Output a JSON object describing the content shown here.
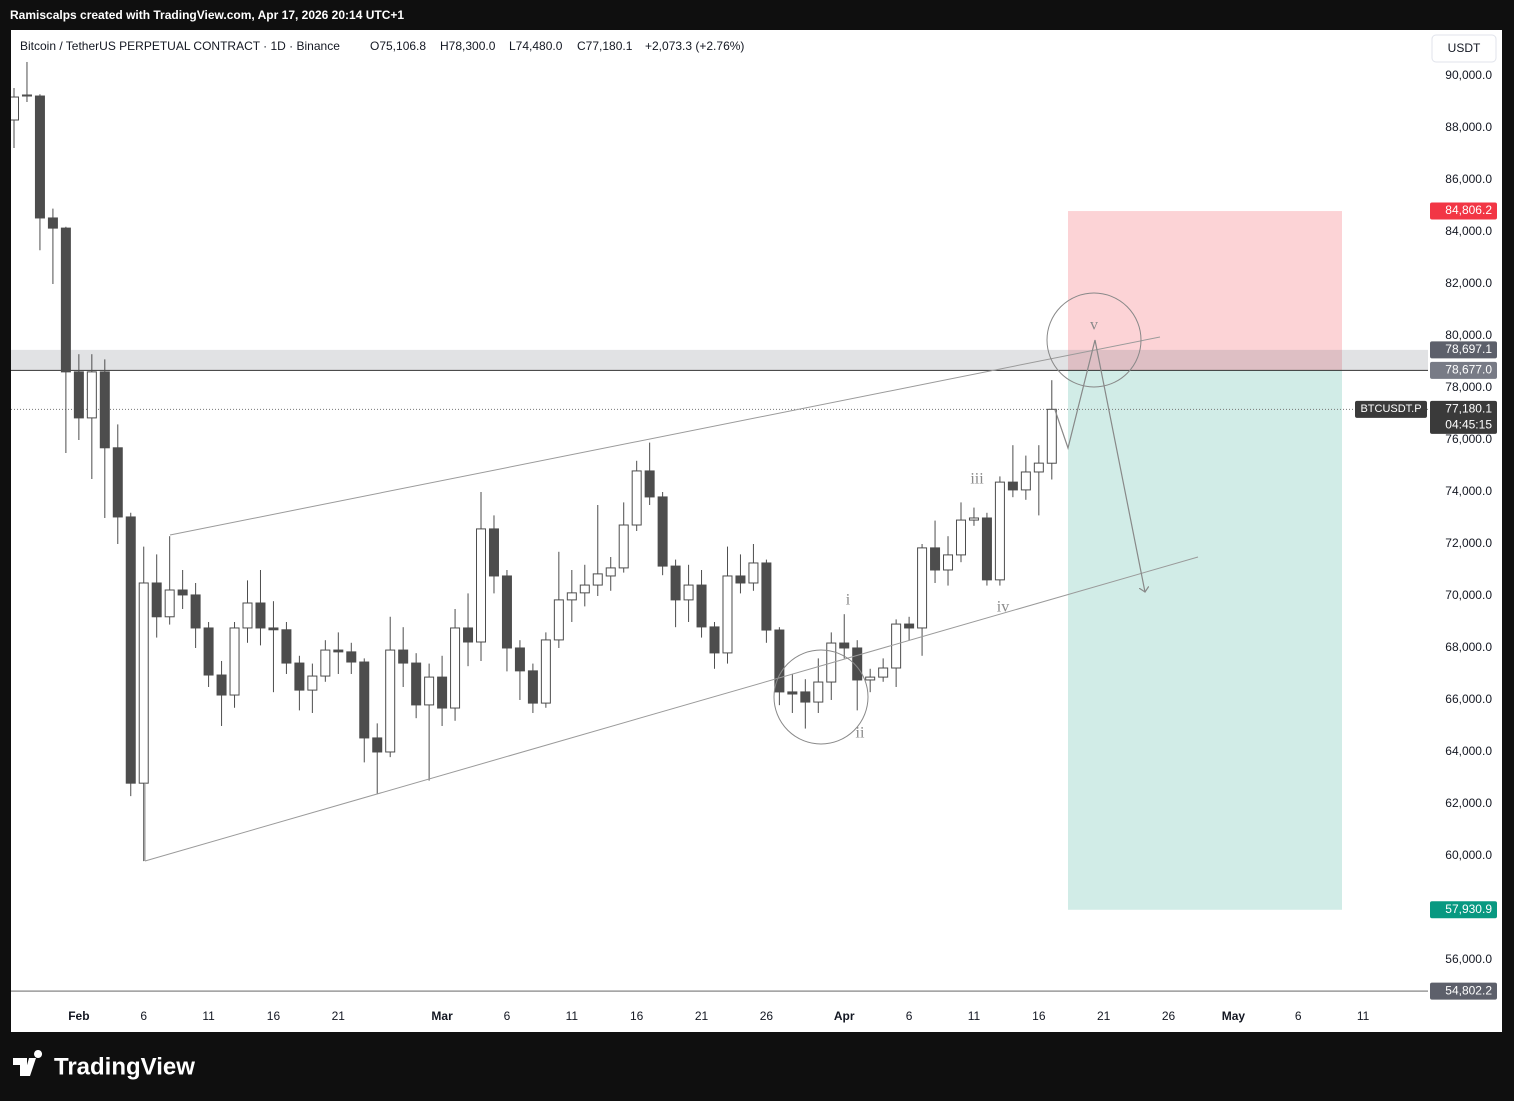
{
  "attribution": "Ramiscalps created with TradingView.com, Apr 17, 2026 20:14 UTC+1",
  "brand": "TradingView",
  "chart_data": {
    "type": "candlestick",
    "title": "Bitcoin / TetherUS PERPETUAL CONTRACT · 1D · Binance",
    "ohlc_labels": [
      "O75,106.8",
      "H78,300.0",
      "L74,480.0",
      "C77,180.1",
      "+2,073.3 (+2.76%)"
    ],
    "currency": "USDT",
    "x": [
      "2026-01-27",
      "2026-01-28",
      "2026-01-29",
      "2026-01-30",
      "2026-01-31",
      "2026-02-01",
      "2026-02-02",
      "2026-02-03",
      "2026-02-04",
      "2026-02-05",
      "2026-02-06",
      "2026-02-07",
      "2026-02-08",
      "2026-02-09",
      "2026-02-10",
      "2026-02-11",
      "2026-02-12",
      "2026-02-13",
      "2026-02-14",
      "2026-02-15",
      "2026-02-16",
      "2026-02-17",
      "2026-02-18",
      "2026-02-19",
      "2026-02-20",
      "2026-02-21",
      "2026-02-22",
      "2026-02-23",
      "2026-02-24",
      "2026-02-25",
      "2026-02-26",
      "2026-02-27",
      "2026-02-28",
      "2026-03-01",
      "2026-03-02",
      "2026-03-03",
      "2026-03-04",
      "2026-03-05",
      "2026-03-06",
      "2026-03-07",
      "2026-03-08",
      "2026-03-09",
      "2026-03-10",
      "2026-03-11",
      "2026-03-12",
      "2026-03-13",
      "2026-03-14",
      "2026-03-15",
      "2026-03-16",
      "2026-03-17",
      "2026-03-18",
      "2026-03-19",
      "2026-03-20",
      "2026-03-21",
      "2026-03-22",
      "2026-03-23",
      "2026-03-24",
      "2026-03-25",
      "2026-03-26",
      "2026-03-27",
      "2026-03-28",
      "2026-03-29",
      "2026-03-30",
      "2026-03-31",
      "2026-04-01",
      "2026-04-02",
      "2026-04-03",
      "2026-04-04",
      "2026-04-05",
      "2026-04-06",
      "2026-04-07",
      "2026-04-08",
      "2026-04-09",
      "2026-04-10",
      "2026-04-11",
      "2026-04-12",
      "2026-04-13",
      "2026-04-14",
      "2026-04-15",
      "2026-04-16",
      "2026-04-17"
    ],
    "open": [
      88308,
      89231,
      89230,
      84540,
      84150,
      78620,
      76850,
      78620,
      75700,
      73040,
      62800,
      70500,
      69200,
      70230,
      70040,
      68770,
      66960,
      66190,
      68770,
      69730,
      68770,
      68700,
      67420,
      66380,
      66920,
      67920,
      67850,
      67460,
      64540,
      64000,
      67920,
      67420,
      65810,
      66880,
      65690,
      68770,
      68230,
      72580,
      70770,
      68000,
      67120,
      65880,
      68310,
      69850,
      70120,
      70420,
      70770,
      71080,
      72730,
      74810,
      73810,
      71150,
      69850,
      70420,
      68810,
      67810,
      70770,
      70500,
      71270,
      68690,
      66310,
      66310,
      65920,
      66690,
      68190,
      68000,
      66770,
      66880,
      67230,
      68920,
      68770,
      71850,
      71000,
      71580,
      72920,
      73000,
      70620,
      74380,
      74080,
      74770,
      75106.8
    ],
    "high": [
      89538,
      90540,
      89300,
      84900,
      84200,
      79300,
      79300,
      79100,
      76600,
      73200,
      71900,
      71600,
      72300,
      71000,
      70500,
      69000,
      67500,
      69000,
      70600,
      71000,
      69800,
      69000,
      67700,
      67400,
      68300,
      68600,
      68200,
      67600,
      65100,
      69200,
      68800,
      67800,
      67400,
      67700,
      69500,
      70100,
      74000,
      73100,
      71000,
      68300,
      67400,
      68600,
      71700,
      71000,
      71200,
      73500,
      71500,
      73600,
      75200,
      75900,
      74000,
      71400,
      71200,
      71000,
      69000,
      71900,
      71600,
      72000,
      71400,
      68800,
      67000,
      66800,
      67600,
      68600,
      69300,
      68300,
      67200,
      67600,
      69100,
      69200,
      72000,
      72900,
      72300,
      73600,
      73400,
      73200,
      74600,
      75800,
      75400,
      75800,
      78300
    ],
    "low": [
      87231,
      89000,
      83300,
      82000,
      75500,
      76000,
      74500,
      73000,
      72000,
      62300,
      59800,
      68400,
      68900,
      69500,
      68000,
      66500,
      65000,
      65700,
      68200,
      68100,
      66300,
      67000,
      65600,
      65500,
      66700,
      67000,
      67000,
      63600,
      62400,
      63800,
      66500,
      65300,
      62900,
      65000,
      65200,
      67300,
      67500,
      70100,
      67100,
      66000,
      65500,
      65700,
      68000,
      69000,
      69600,
      70000,
      70200,
      70900,
      72500,
      73500,
      70800,
      68800,
      69000,
      68400,
      67200,
      67400,
      70100,
      70200,
      68200,
      65800,
      65500,
      64900,
      65500,
      66000,
      67600,
      65600,
      66300,
      66700,
      66500,
      68300,
      67700,
      70500,
      70400,
      71300,
      72700,
      70400,
      70400,
      73800,
      73700,
      73100,
      74480
    ],
    "close": [
      89192,
      89270,
      84540,
      84150,
      78620,
      76850,
      78620,
      75700,
      73040,
      62800,
      70500,
      69200,
      70230,
      70040,
      68770,
      66960,
      66190,
      68770,
      69730,
      68770,
      68700,
      67420,
      66380,
      66920,
      67920,
      67850,
      67460,
      64540,
      64000,
      67920,
      67420,
      65810,
      66880,
      65690,
      68770,
      68230,
      72580,
      70770,
      68000,
      67120,
      65880,
      68310,
      69850,
      70120,
      70420,
      70850,
      71080,
      72730,
      74810,
      73810,
      71150,
      69850,
      70420,
      68810,
      67810,
      70770,
      70500,
      71270,
      68690,
      66310,
      66230,
      65920,
      66690,
      68190,
      68000,
      66770,
      66880,
      67230,
      68920,
      68770,
      71850,
      71000,
      71580,
      72920,
      73000,
      70620,
      74380,
      74080,
      74770,
      75110,
      77180.1
    ],
    "up_color": "#ffffff",
    "down_color": "#4d4d4d",
    "wick_color": "#4d4d4d",
    "xlim": [
      "2026-01-27",
      "2026-05-16"
    ],
    "xticks": [
      {
        "value": "2026-02-01",
        "label": "Feb"
      },
      {
        "value": "2026-02-06",
        "label": "6"
      },
      {
        "value": "2026-02-11",
        "label": "11"
      },
      {
        "value": "2026-02-16",
        "label": "16"
      },
      {
        "value": "2026-02-21",
        "label": "21"
      },
      {
        "value": "2026-03-01",
        "label": "Mar"
      },
      {
        "value": "2026-03-06",
        "label": "6"
      },
      {
        "value": "2026-03-11",
        "label": "11"
      },
      {
        "value": "2026-03-16",
        "label": "16"
      },
      {
        "value": "2026-03-21",
        "label": "21"
      },
      {
        "value": "2026-03-26",
        "label": "26"
      },
      {
        "value": "2026-04-01",
        "label": "Apr"
      },
      {
        "value": "2026-04-06",
        "label": "6"
      },
      {
        "value": "2026-04-11",
        "label": "11"
      },
      {
        "value": "2026-04-16",
        "label": "16"
      },
      {
        "value": "2026-04-21",
        "label": "21"
      },
      {
        "value": "2026-04-26",
        "label": "26"
      },
      {
        "value": "2026-05-01",
        "label": "May"
      },
      {
        "value": "2026-05-06",
        "label": "6"
      },
      {
        "value": "2026-05-11",
        "label": "11"
      }
    ],
    "ylim": [
      54460,
      91770
    ],
    "yticks": [
      {
        "value": 90000,
        "label": "90,000.0"
      },
      {
        "value": 88000,
        "label": "88,000.0"
      },
      {
        "value": 86000,
        "label": "86,000.0"
      },
      {
        "value": 84000,
        "label": "84,000.0"
      },
      {
        "value": 82000,
        "label": "82,000.0"
      },
      {
        "value": 80000,
        "label": "80,000.0"
      },
      {
        "value": 78000,
        "label": "78,000.0"
      },
      {
        "value": 76000,
        "label": "76,000.0"
      },
      {
        "value": 74000,
        "label": "74,000.0"
      },
      {
        "value": 72000,
        "label": "72,000.0"
      },
      {
        "value": 70000,
        "label": "70,000.0"
      },
      {
        "value": 68000,
        "label": "68,000.0"
      },
      {
        "value": 66000,
        "label": "66,000.0"
      },
      {
        "value": 64000,
        "label": "64,000.0"
      },
      {
        "value": 62000,
        "label": "62,000.0"
      },
      {
        "value": 60000,
        "label": "60,000.0"
      },
      {
        "value": 56000,
        "label": "56,000.0"
      }
    ],
    "levels": [
      {
        "value": 84806.2,
        "label": "84,806.2",
        "color": "#f23645"
      },
      {
        "value": 78697.1,
        "label": "78,697.1",
        "color": "#5d606b"
      },
      {
        "value": 78677.0,
        "label": "78,677.0",
        "color": "#787b86"
      },
      {
        "value": 57930.9,
        "label": "57,930.9",
        "color": "#089981"
      },
      {
        "value": 54802.2,
        "label": "54,802.2",
        "color": "#5d606b"
      }
    ],
    "last_price": {
      "value": 77180.1,
      "label": "77,180.1",
      "symbol": "BTCUSDT.P",
      "countdown": "04:45:15"
    },
    "annotations": [
      "i",
      "ii",
      "iii",
      "iv",
      "v"
    ],
    "grid": false
  }
}
